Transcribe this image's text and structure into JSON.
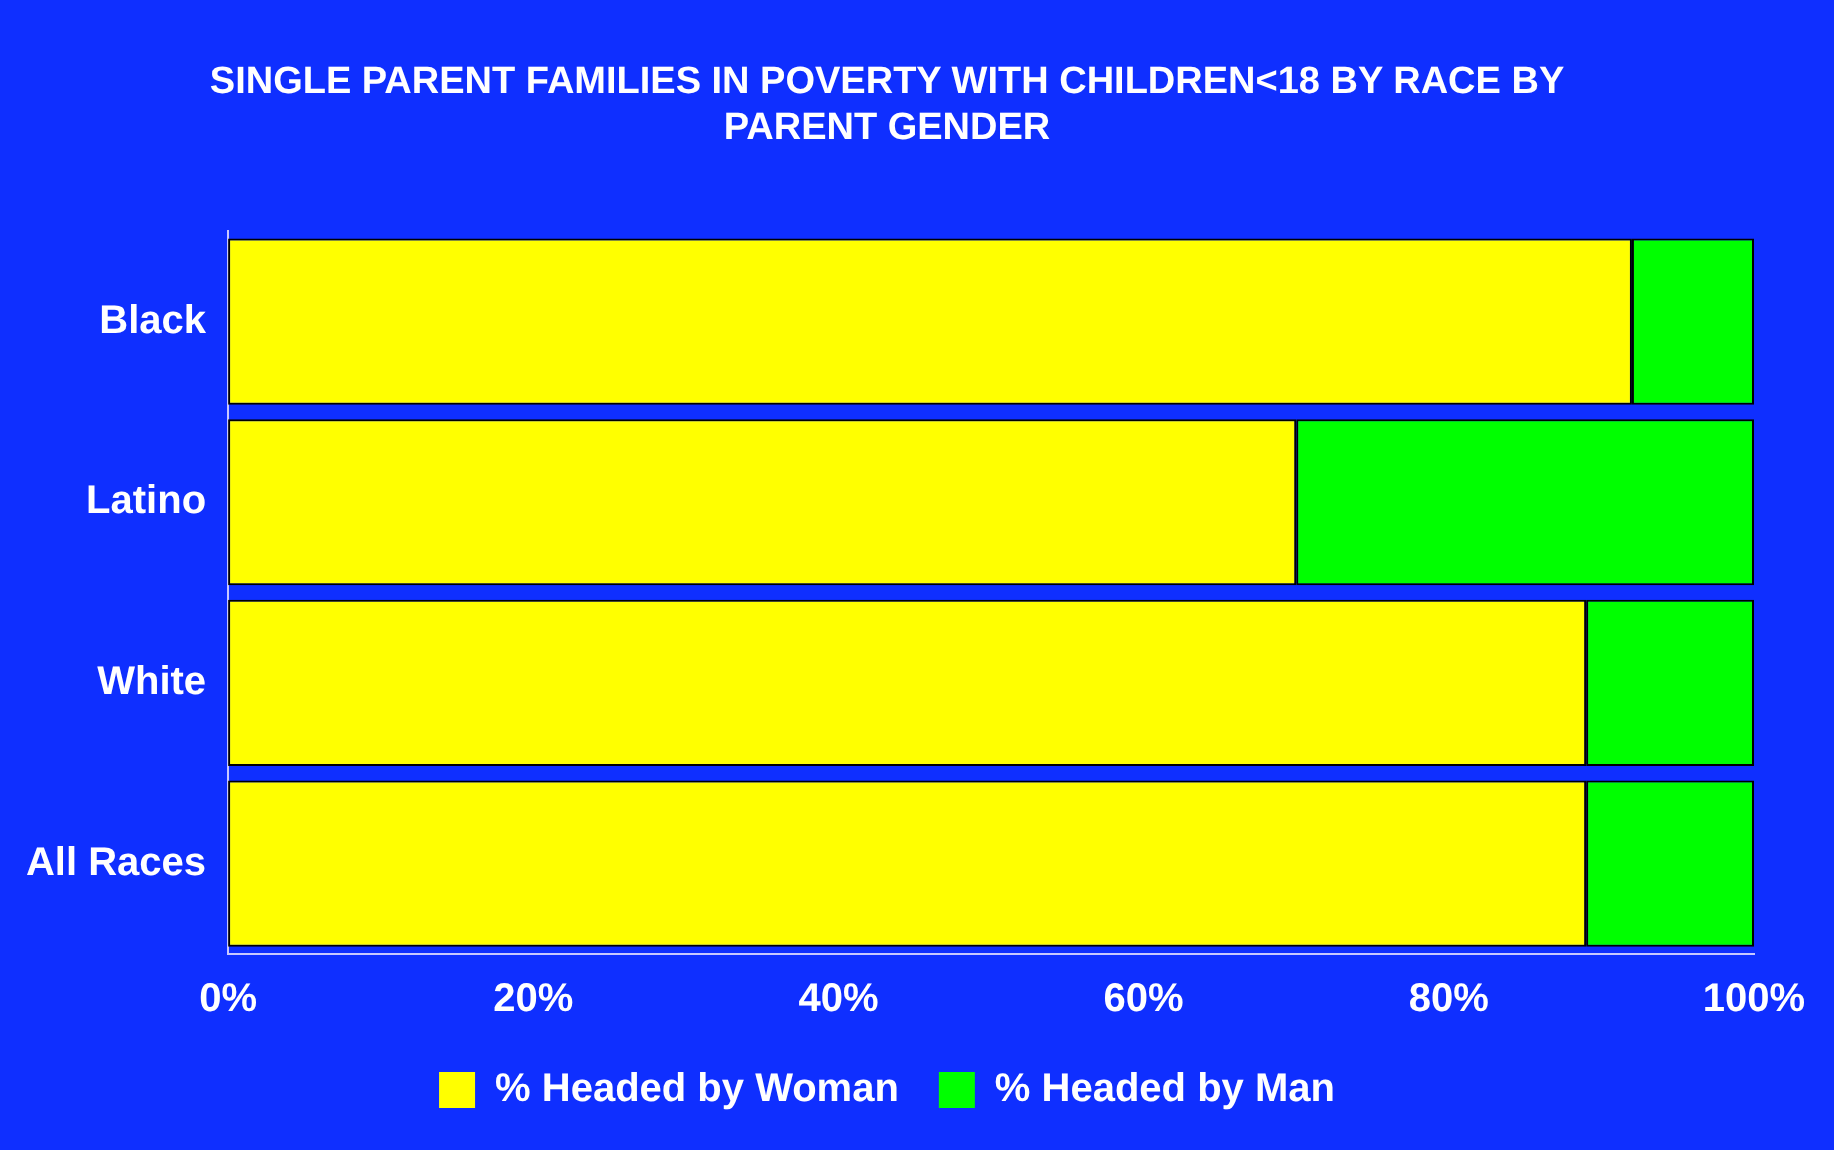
{
  "chart_data": {
    "type": "bar",
    "title": "SINGLE PARENT FAMILIES IN POVERTY WITH CHILDREN<18 BY RACE BY PARENT GENDER",
    "orientation": "horizontal",
    "stacked": true,
    "categories": [
      "Black",
      "Latino",
      "White",
      "All Races"
    ],
    "series": [
      {
        "name": "% Headed by Woman",
        "color": "#ffff00",
        "values": [
          92,
          70,
          89,
          89
        ]
      },
      {
        "name": "% Headed by Man",
        "color": "#00ff00",
        "values": [
          8,
          30,
          11,
          11
        ]
      }
    ],
    "xlim": [
      0,
      100
    ],
    "xticks": [
      {
        "value": 0,
        "label": "0%"
      },
      {
        "value": 20,
        "label": "20%"
      },
      {
        "value": 40,
        "label": "40%"
      },
      {
        "value": 60,
        "label": "60%"
      },
      {
        "value": 80,
        "label": "80%"
      },
      {
        "value": 100,
        "label": "100%"
      }
    ],
    "grid": false,
    "legend": "bottom"
  }
}
